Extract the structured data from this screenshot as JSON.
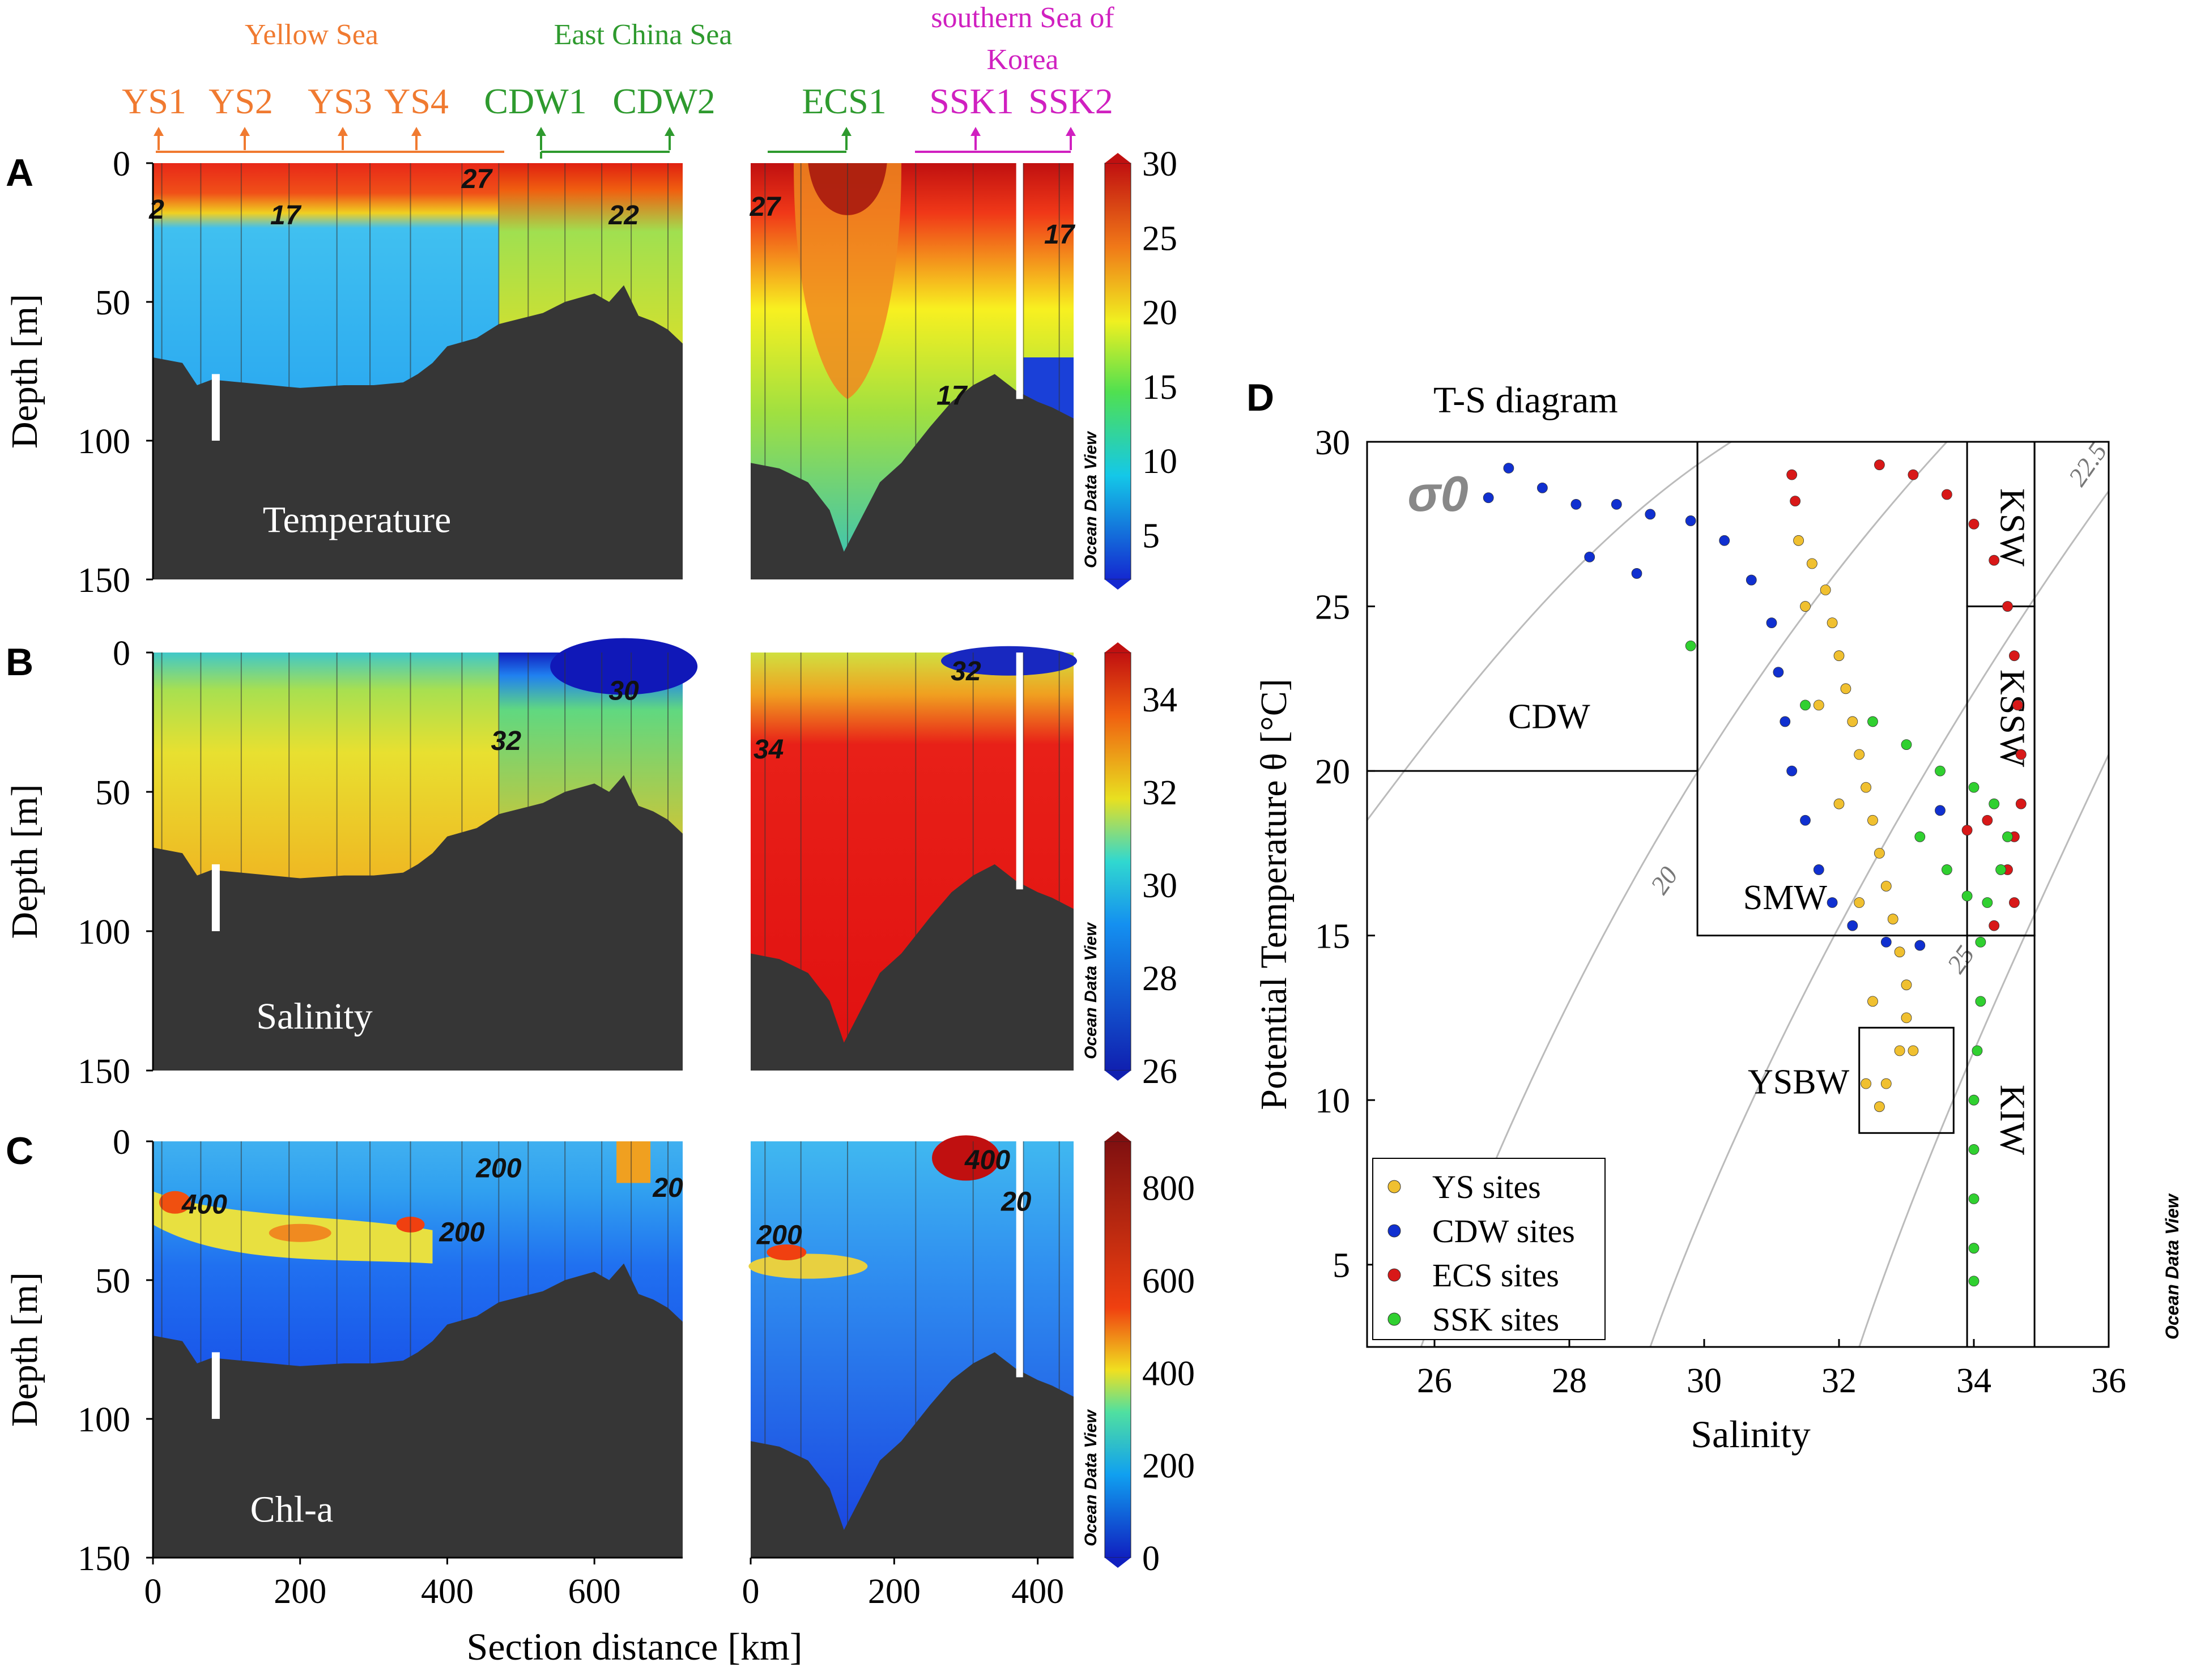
{
  "figure": {
    "regions": {
      "yellow_sea": {
        "label": "Yellow Sea",
        "color": "#f07a30"
      },
      "east_china_sea": {
        "label": "East China Sea",
        "color": "#2e9a2e"
      },
      "southern_sea": {
        "label_line1": "southern Sea of",
        "label_line2": "Korea",
        "color": "#d020c0"
      }
    },
    "stations": [
      "YS1",
      "YS2",
      "YS3",
      "YS4",
      "CDW1",
      "CDW2",
      "ECS1",
      "SSK1",
      "SSK2"
    ],
    "panel_letters": [
      "A",
      "B",
      "C",
      "D"
    ],
    "watermark": "Ocean Data View",
    "depth_axis_label": "Depth [m]",
    "section_axis_label": "Section distance [km]"
  },
  "chart_data": [
    {
      "type": "heatmap",
      "panel": "A",
      "title": "Temperature",
      "ylabel": "Depth [m]",
      "xlabel": "Section distance [km]",
      "depth_ticks": [
        "0",
        "50",
        "100",
        "150"
      ],
      "x_ticks_left": [
        "0",
        "200",
        "400",
        "600"
      ],
      "x_ticks_right": [
        "0",
        "200",
        "400"
      ],
      "ylim": [
        0,
        150
      ],
      "colorbar": {
        "min": 2,
        "max": 30,
        "ticks": [
          "30",
          "25",
          "20",
          "15",
          "10",
          "5"
        ]
      },
      "contour_labels": [
        "2",
        "17",
        "27",
        "22",
        "27",
        "17",
        "17"
      ],
      "station_x_km": {
        "YS1": 12,
        "YS2": 120,
        "YS3": 250,
        "YS4": 350,
        "CDW1": 520,
        "CDW2": 700,
        "ECS1": 135,
        "SSK1": 310,
        "SSK2": 430
      }
    },
    {
      "type": "heatmap",
      "panel": "B",
      "title": "Salinity",
      "ylabel": "Depth [m]",
      "depth_ticks": [
        "0",
        "50",
        "100",
        "150"
      ],
      "ylim": [
        0,
        150
      ],
      "colorbar": {
        "min": 26,
        "max": 35,
        "ticks": [
          "34",
          "32",
          "30",
          "28",
          "26"
        ]
      },
      "contour_labels": [
        "30",
        "32",
        "32",
        "34"
      ]
    },
    {
      "type": "heatmap",
      "panel": "C",
      "title": "Chl-a",
      "ylabel": "Depth [m]",
      "xlabel": "Section distance [km]",
      "depth_ticks": [
        "0",
        "50",
        "100",
        "150"
      ],
      "ylim": [
        0,
        150
      ],
      "colorbar": {
        "min": 0,
        "max": 900,
        "ticks": [
          "800",
          "600",
          "400",
          "200",
          "0"
        ]
      },
      "contour_labels": [
        "400",
        "200",
        "200",
        "20",
        "400",
        "200",
        "20"
      ]
    },
    {
      "type": "scatter",
      "panel": "D",
      "title": "T-S diagram",
      "sigma_label": "σ0",
      "xlabel": "Salinity",
      "ylabel": "Potential Temperature θ [°C]",
      "xlim": [
        25,
        36
      ],
      "ylim": [
        2.5,
        30
      ],
      "x_ticks": [
        "26",
        "28",
        "30",
        "32",
        "34",
        "36"
      ],
      "y_ticks": [
        "5",
        "10",
        "15",
        "20",
        "25",
        "30"
      ],
      "density_isolines": [
        "20",
        "22.5",
        "25"
      ],
      "water_masses": [
        {
          "label": "CDW",
          "s": [
            25,
            29.9
          ],
          "t": [
            20,
            30
          ]
        },
        {
          "label": "SMW",
          "s": [
            29.9,
            34.9
          ],
          "t": [
            15,
            30
          ]
        },
        {
          "label": "YSBW",
          "s": [
            32.3,
            33.7
          ],
          "t": [
            9,
            12.2
          ]
        },
        {
          "label": "KSW",
          "s": [
            33.9,
            34.9
          ],
          "t": [
            25,
            30
          ]
        },
        {
          "label": "KSSW",
          "s": [
            33.9,
            34.9
          ],
          "t": [
            15,
            25
          ]
        },
        {
          "label": "KIW",
          "s": [
            33.9,
            34.9
          ],
          "t": [
            2.5,
            15
          ]
        }
      ],
      "legend": [
        {
          "name": "YS sites",
          "color": "#f0c030"
        },
        {
          "name": "CDW sites",
          "color": "#1030d0"
        },
        {
          "name": "ECS sites",
          "color": "#d81818"
        },
        {
          "name": "SSK sites",
          "color": "#30d030"
        }
      ],
      "series": [
        {
          "name": "YS sites",
          "points": [
            [
              31.4,
              27
            ],
            [
              31.6,
              26.3
            ],
            [
              31.8,
              25.5
            ],
            [
              31.9,
              24.5
            ],
            [
              32.0,
              23.5
            ],
            [
              32.1,
              22.5
            ],
            [
              32.2,
              21.5
            ],
            [
              32.3,
              20.5
            ],
            [
              32.4,
              19.5
            ],
            [
              32.5,
              18.5
            ],
            [
              32.6,
              17.5
            ],
            [
              32.7,
              16.5
            ],
            [
              32.8,
              15.5
            ],
            [
              32.9,
              14.5
            ],
            [
              33.0,
              13.5
            ],
            [
              33.0,
              12.5
            ],
            [
              32.9,
              11.5
            ],
            [
              32.7,
              10.5
            ],
            [
              32.6,
              9.8
            ],
            [
              31.5,
              25
            ],
            [
              31.7,
              22
            ],
            [
              32.0,
              19
            ],
            [
              32.3,
              16
            ],
            [
              32.5,
              13
            ],
            [
              32.4,
              10.5
            ],
            [
              33.1,
              11.5
            ]
          ]
        },
        {
          "name": "CDW sites",
          "points": [
            [
              26.8,
              28.3
            ],
            [
              27.1,
              29.2
            ],
            [
              27.6,
              28.6
            ],
            [
              28.1,
              28.1
            ],
            [
              28.7,
              28.1
            ],
            [
              29.2,
              27.8
            ],
            [
              29.8,
              27.6
            ],
            [
              30.3,
              27.0
            ],
            [
              30.7,
              25.8
            ],
            [
              31.0,
              24.5
            ],
            [
              31.1,
              23.0
            ],
            [
              31.2,
              21.5
            ],
            [
              31.3,
              20.0
            ],
            [
              31.5,
              18.5
            ],
            [
              31.7,
              17.0
            ],
            [
              31.9,
              16.0
            ],
            [
              32.2,
              15.3
            ],
            [
              32.7,
              14.8
            ],
            [
              33.2,
              14.7
            ],
            [
              33.5,
              18.8
            ],
            [
              29.0,
              26.0
            ],
            [
              28.3,
              26.5
            ]
          ]
        },
        {
          "name": "ECS sites",
          "points": [
            [
              31.3,
              29.0
            ],
            [
              31.35,
              28.2
            ],
            [
              32.6,
              29.3
            ],
            [
              33.1,
              29.0
            ],
            [
              33.6,
              28.4
            ],
            [
              34.0,
              27.5
            ],
            [
              34.3,
              26.4
            ],
            [
              34.5,
              25.0
            ],
            [
              34.6,
              23.5
            ],
            [
              34.65,
              22.0
            ],
            [
              34.7,
              20.5
            ],
            [
              34.7,
              19.0
            ],
            [
              34.6,
              18.0
            ],
            [
              34.5,
              17.0
            ],
            [
              34.6,
              16.0
            ],
            [
              34.3,
              15.3
            ],
            [
              33.9,
              18.2
            ],
            [
              34.2,
              18.5
            ]
          ]
        },
        {
          "name": "SSK sites",
          "points": [
            [
              29.8,
              23.8
            ],
            [
              31.5,
              22.0
            ],
            [
              32.5,
              21.5
            ],
            [
              33.0,
              20.8
            ],
            [
              33.5,
              20.0
            ],
            [
              34.0,
              19.5
            ],
            [
              34.3,
              19.0
            ],
            [
              34.5,
              18.0
            ],
            [
              34.4,
              17.0
            ],
            [
              34.2,
              16.0
            ],
            [
              34.1,
              14.8
            ],
            [
              34.1,
              13.0
            ],
            [
              34.05,
              11.5
            ],
            [
              34.0,
              10.0
            ],
            [
              34.0,
              8.5
            ],
            [
              34.0,
              7.0
            ],
            [
              34.0,
              5.5
            ],
            [
              34.0,
              4.5
            ],
            [
              33.2,
              18.0
            ],
            [
              33.6,
              17.0
            ],
            [
              33.9,
              16.2
            ]
          ]
        }
      ]
    }
  ]
}
